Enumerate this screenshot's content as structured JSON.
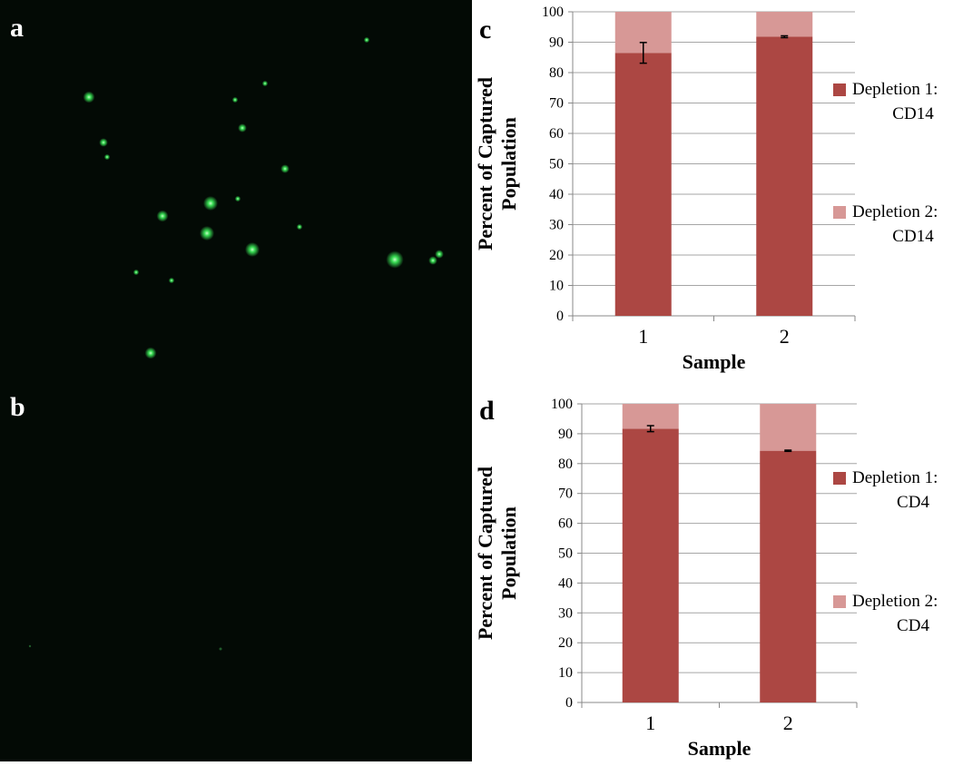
{
  "panels": {
    "a": "a",
    "b": "b",
    "c": "c",
    "d": "d"
  },
  "colors": {
    "depletion1": "#ac4743",
    "depletion2": "#d79896",
    "grid": "#a6a6a6",
    "micro_bg": "#030a05",
    "cell": "#3cf05a"
  },
  "chart_data": [
    {
      "type": "bar",
      "stacked": true,
      "panel": "c",
      "categories": [
        "1",
        "2"
      ],
      "series": [
        {
          "name": "Depletion 1: CD14",
          "values": [
            86.5,
            91.8
          ],
          "error": [
            3.4,
            0.3
          ]
        },
        {
          "name": "Depletion 2: CD14",
          "values": [
            13.5,
            8.2
          ]
        }
      ],
      "xlabel": "Sample",
      "ylabel_lines": [
        "Percent of Captured",
        "Population"
      ],
      "ylim": [
        0,
        100
      ],
      "yticks": [
        0,
        10,
        20,
        30,
        40,
        50,
        60,
        70,
        80,
        90,
        100
      ],
      "grid": true,
      "legend_position": "right",
      "legend": [
        {
          "line1": "Depletion 1:",
          "line2": "CD14"
        },
        {
          "line1": "Depletion 2:",
          "line2": "CD14"
        }
      ]
    },
    {
      "type": "bar",
      "stacked": true,
      "panel": "d",
      "categories": [
        "1",
        "2"
      ],
      "series": [
        {
          "name": "Depletion 1: CD4",
          "values": [
            91.7,
            84.3
          ],
          "error": [
            1.0,
            0.2
          ]
        },
        {
          "name": "Depletion 2: CD4",
          "values": [
            8.3,
            15.7
          ]
        }
      ],
      "xlabel": "Sample",
      "ylabel_lines": [
        "Percent of Captured",
        "Population"
      ],
      "ylim": [
        0,
        100
      ],
      "yticks": [
        0,
        10,
        20,
        30,
        40,
        50,
        60,
        70,
        80,
        90,
        100
      ],
      "grid": true,
      "legend_position": "right",
      "legend": [
        {
          "line1": "Depletion 1:",
          "line2": "CD4"
        },
        {
          "line1": "Depletion 2:",
          "line2": "CD4"
        }
      ]
    }
  ]
}
